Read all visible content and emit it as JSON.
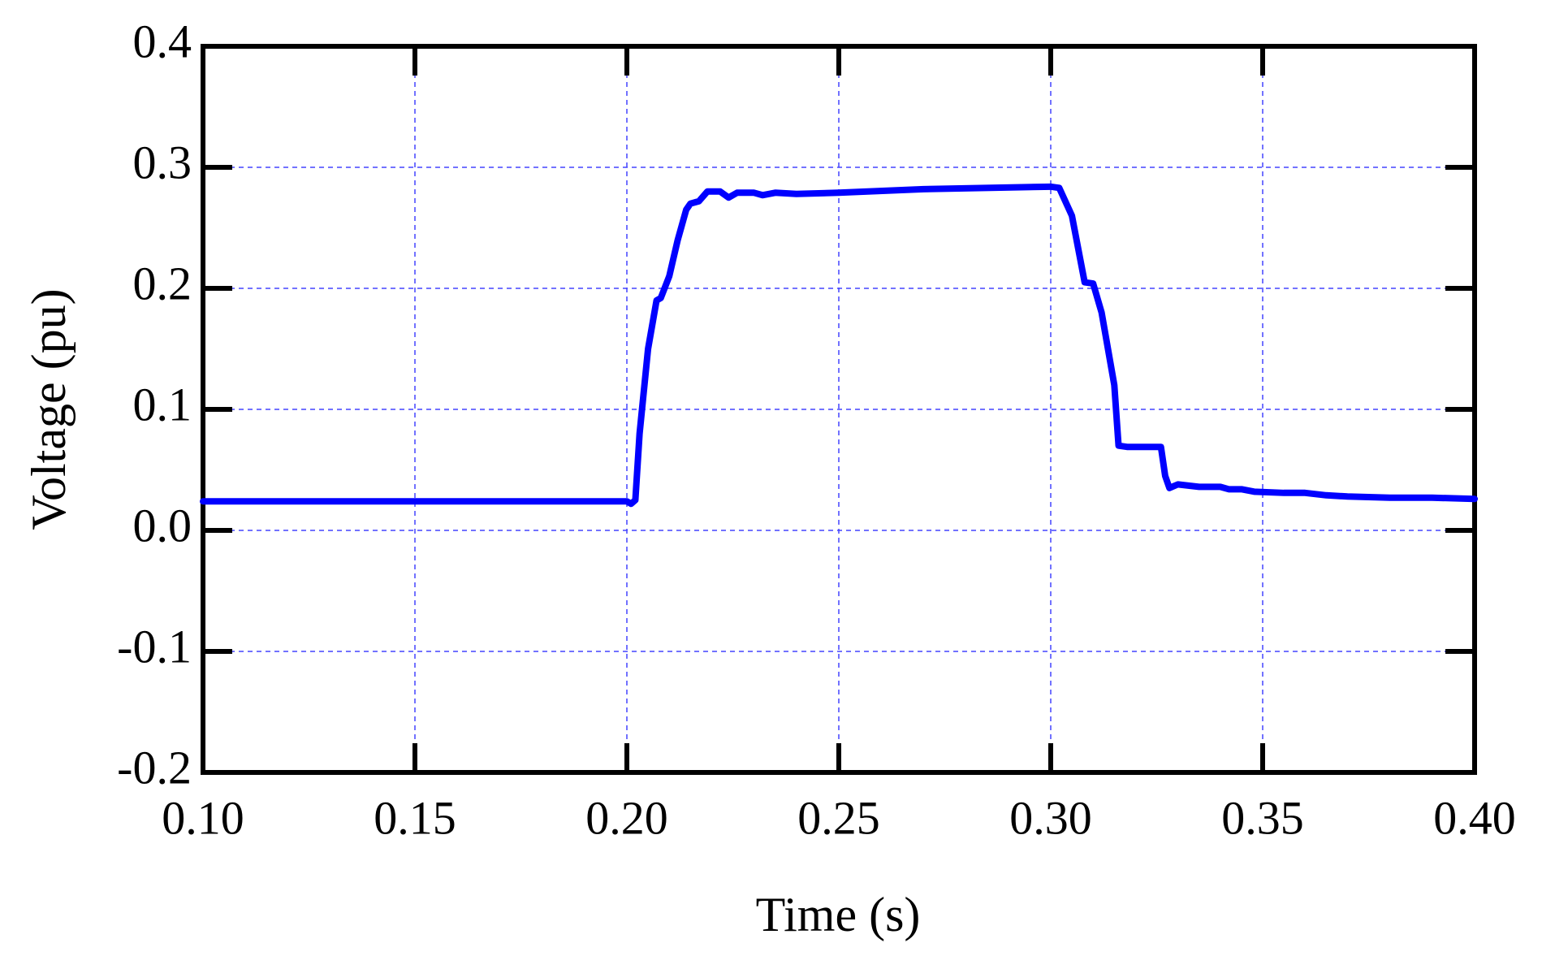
{
  "chart_data": {
    "type": "line",
    "x_label": "Time (s)",
    "y_label": "Voltage (pu)",
    "xlim": [
      0.1,
      0.4
    ],
    "xticks": [
      {
        "value": 0.1,
        "label": "0.10"
      },
      0.15,
      {
        "value": 0.2,
        "label": "0.20"
      },
      0.25,
      {
        "value": 0.3,
        "label": "0.30"
      },
      0.35,
      {
        "value": 0.4,
        "label": "0.40"
      }
    ],
    "ylim": [
      -0.2,
      0.4
    ],
    "yticks": [
      -0.2,
      -0.1,
      {
        "value": 0,
        "label": "0.0"
      },
      0.1,
      0.2,
      0.3,
      0.4
    ],
    "grid": true,
    "series": [
      {
        "name": "Voltage",
        "color": "#0000ff",
        "x": [
          0.1,
          0.2,
          0.201,
          0.202,
          0.203,
          0.205,
          0.207,
          0.208,
          0.21,
          0.212,
          0.214,
          0.215,
          0.217,
          0.219,
          0.222,
          0.224,
          0.226,
          0.23,
          0.232,
          0.235,
          0.24,
          0.25,
          0.27,
          0.3,
          0.302,
          0.305,
          0.308,
          0.31,
          0.312,
          0.315,
          0.316,
          0.318,
          0.326,
          0.327,
          0.328,
          0.33,
          0.335,
          0.34,
          0.342,
          0.345,
          0.348,
          0.355,
          0.36,
          0.365,
          0.37,
          0.38,
          0.39,
          0.4
        ],
        "values": [
          0.024,
          0.024,
          0.022,
          0.025,
          0.08,
          0.15,
          0.19,
          0.192,
          0.21,
          0.24,
          0.265,
          0.27,
          0.272,
          0.28,
          0.28,
          0.275,
          0.279,
          0.279,
          0.277,
          0.279,
          0.278,
          0.279,
          0.282,
          0.284,
          0.283,
          0.26,
          0.205,
          0.204,
          0.18,
          0.12,
          0.07,
          0.069,
          0.069,
          0.045,
          0.035,
          0.038,
          0.036,
          0.036,
          0.034,
          0.034,
          0.032,
          0.031,
          0.031,
          0.029,
          0.028,
          0.027,
          0.027,
          0.026
        ]
      }
    ]
  }
}
